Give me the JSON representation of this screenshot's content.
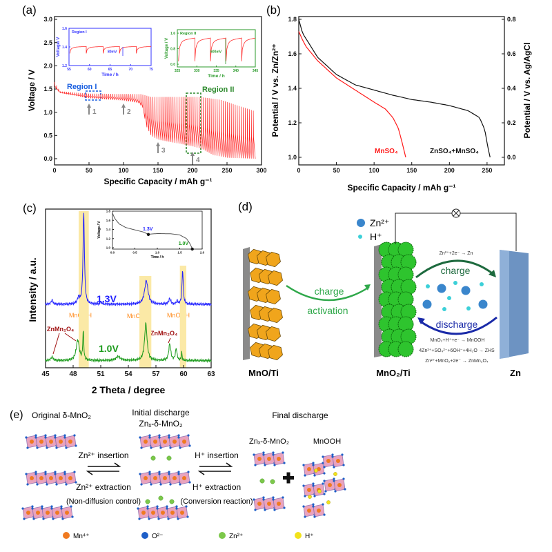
{
  "panel_labels": {
    "a": "(a)",
    "b": "(b)",
    "c": "(c)",
    "d": "(d)",
    "e": "(e)"
  },
  "chart_data": [
    {
      "id": "a",
      "type": "line",
      "xlabel": "Specific Capacity / mAh g⁻¹",
      "ylabel": "Voltage / V",
      "xlim": [
        0,
        300
      ],
      "ylim": [
        0,
        3.0
      ],
      "xticks": [
        0,
        50,
        100,
        150,
        200,
        250,
        300
      ],
      "yticks": [
        "0.0",
        "0.5",
        "1.0",
        "1.5",
        "2.0",
        "2.5",
        "3.0"
      ],
      "color": "#ff2020",
      "pulse_count": 100,
      "discharge_end": [
        [
          0,
          1.65
        ],
        [
          3,
          1.5
        ],
        [
          8,
          1.42
        ],
        [
          50,
          1.31
        ],
        [
          100,
          1.26
        ],
        [
          122,
          1.2
        ],
        [
          128,
          1.1
        ],
        [
          133,
          0.7
        ],
        [
          140,
          0.5
        ],
        [
          150,
          0.41
        ],
        [
          200,
          0.27
        ],
        [
          215,
          0.2
        ],
        [
          230,
          0.08
        ],
        [
          250,
          0.02
        ],
        [
          291,
          0.0
        ]
      ],
      "rest_end": [
        [
          0,
          1.65
        ],
        [
          8,
          1.45
        ],
        [
          50,
          1.4
        ],
        [
          125,
          1.39
        ],
        [
          140,
          1.33
        ],
        [
          210,
          1.33
        ],
        [
          240,
          1.27
        ],
        [
          291,
          1.02
        ]
      ],
      "annotations": {
        "region1": "Region I",
        "region2": "Region II",
        "arrows": [
          {
            "x": 50,
            "label": "1"
          },
          {
            "x": 100,
            "label": "2"
          },
          {
            "x": 150,
            "label": "3"
          },
          {
            "x": 200,
            "label": "4"
          }
        ],
        "region1_color": "#1a5fe0",
        "region2_color": "#2d8a2d"
      },
      "insets": [
        {
          "title": "Region I",
          "xlabel": "Time / h",
          "ylabel": "Voltage/ V",
          "xlim": [
            55,
            75
          ],
          "ylim": [
            1.2,
            1.6
          ],
          "xticks": [
            55,
            60,
            65,
            70,
            75
          ],
          "yticks": [
            "1.2",
            "1.4",
            "1.6"
          ],
          "dips": [
            55.2,
            59.2,
            63.3,
            67.3,
            71.4
          ],
          "low": 1.33,
          "high": 1.405,
          "annotation": "80mV",
          "color": "#3030ff"
        },
        {
          "title": "Region II",
          "xlabel": "Time / h",
          "ylabel": "Voltage / V",
          "xlim": [
            325,
            345
          ],
          "ylim": [
            0.0,
            1.6
          ],
          "xticks": [
            325,
            330,
            335,
            340,
            345
          ],
          "yticks": [
            "0.0",
            "0.8",
            "1.6"
          ],
          "dips": [
            325.3,
            329.5,
            333.5,
            337.5,
            341.5
          ],
          "low": 0.15,
          "high": 1.35,
          "annotation": "600mV",
          "color": "#2a9a2a"
        }
      ]
    },
    {
      "id": "b",
      "type": "line",
      "xlabel": "Specific Capacity / mAh g⁻¹",
      "ylabel": "Potential  / V vs. Zn/Zn²⁺",
      "ylabel_right": "Potential  / V vs. Ag/AgCl",
      "xlim": [
        0,
        273
      ],
      "ylim": [
        1.0,
        1.8
      ],
      "ylim_right": [
        0.0,
        0.8
      ],
      "xticks": [
        0,
        50,
        100,
        150,
        200,
        250
      ],
      "yticks": [
        "1.0",
        "1.2",
        "1.4",
        "1.6",
        "1.8"
      ],
      "yticks_right": [
        "0.0",
        "0.2",
        "0.4",
        "0.6",
        "0.8"
      ],
      "series": [
        {
          "name": "MnSO₄",
          "color": "#ff1a1a",
          "points": [
            [
              0,
              1.73
            ],
            [
              5,
              1.68
            ],
            [
              10,
              1.64
            ],
            [
              25,
              1.56
            ],
            [
              50,
              1.46
            ],
            [
              75,
              1.39
            ],
            [
              100,
              1.32
            ],
            [
              115,
              1.28
            ],
            [
              125,
              1.23
            ],
            [
              132,
              1.17
            ],
            [
              137,
              1.09
            ],
            [
              142,
              1.0
            ]
          ]
        },
        {
          "name": "ZnSO₄+MnSO₄",
          "color": "#111111",
          "points": [
            [
              0,
              1.8
            ],
            [
              5,
              1.72
            ],
            [
              25,
              1.58
            ],
            [
              50,
              1.48
            ],
            [
              75,
              1.42
            ],
            [
              100,
              1.39
            ],
            [
              125,
              1.36
            ],
            [
              150,
              1.335
            ],
            [
              175,
              1.32
            ],
            [
              200,
              1.3
            ],
            [
              225,
              1.27
            ],
            [
              240,
              1.23
            ],
            [
              247,
              1.16
            ],
            [
              251,
              1.06
            ],
            [
              254,
              1.0
            ]
          ]
        }
      ]
    },
    {
      "id": "c",
      "type": "line",
      "xlabel": "2 Theta / degree",
      "ylabel": "Intensity / a.u.",
      "xlim": [
        45,
        63
      ],
      "xticks": [
        45,
        48,
        51,
        54,
        57,
        60,
        63
      ],
      "highlight_bands": [
        [
          48.6,
          49.7
        ],
        [
          55.2,
          56.5
        ],
        [
          59.6,
          60.3
        ]
      ],
      "band_color": "#fbe9a6",
      "series": [
        {
          "name": "1.3V",
          "color": "#2020ff",
          "baseline": 4.0,
          "peaks": [
            [
              45.7,
              0.25,
              0.12
            ],
            [
              48.6,
              0.4,
              0.15
            ],
            [
              49.15,
              5.8,
              0.09
            ],
            [
              51.0,
              0.15,
              0.1
            ],
            [
              55.95,
              1.5,
              0.22
            ],
            [
              58.5,
              0.35,
              0.12
            ],
            [
              59.3,
              0.2,
              0.08
            ],
            [
              59.9,
              2.2,
              0.08
            ]
          ]
        },
        {
          "name": "1.0V",
          "color": "#1a9a1a",
          "baseline": 0.45,
          "peaks": [
            [
              45.7,
              0.22,
              0.15
            ],
            [
              48.5,
              1.3,
              0.2
            ],
            [
              49.1,
              1.85,
              0.06
            ],
            [
              52.9,
              0.25,
              0.3
            ],
            [
              55.9,
              2.35,
              0.16
            ],
            [
              58.5,
              1.05,
              0.13
            ],
            [
              59.2,
              0.75,
              0.1
            ],
            [
              59.8,
              0.5,
              0.05
            ]
          ]
        }
      ],
      "peak_labels": {
        "mnooh": "MnOOH",
        "znmn2o4": "ZnMn₂O₄",
        "mnooh_color": "#ff8a1a",
        "znmn2o4_color": "#a01010"
      },
      "inset": {
        "xlabel": "Time / h",
        "ylabel": "Voltage  / V",
        "xlim": [
          0,
          2.0
        ],
        "ylim": [
          1.0,
          1.8
        ],
        "xticks": [
          "0.0",
          "0.5",
          "1.0",
          "1.5",
          "2.0"
        ],
        "yticks": [
          "1.0",
          "1.2",
          "1.4",
          "1.6",
          "1.8"
        ],
        "points": [
          [
            0,
            1.76
          ],
          [
            0.05,
            1.64
          ],
          [
            0.15,
            1.52
          ],
          [
            0.3,
            1.44
          ],
          [
            0.5,
            1.39
          ],
          [
            0.7,
            1.34
          ],
          [
            0.8,
            1.29
          ],
          [
            0.85,
            1.3
          ],
          [
            1.0,
            1.31
          ],
          [
            1.3,
            1.305
          ],
          [
            1.5,
            1.28
          ],
          [
            1.65,
            1.2
          ],
          [
            1.72,
            1.1
          ],
          [
            1.76,
            1.02
          ],
          [
            1.78,
            0.97
          ]
        ],
        "markers": [
          {
            "x": 0.8,
            "y": 1.29,
            "label": "1.3V",
            "color": "#2020ff"
          },
          {
            "x": 1.78,
            "y": 0.97,
            "label": "1.0V",
            "color": "#1a9a1a"
          }
        ]
      }
    }
  ],
  "panel_d": {
    "electrode1": "MnO/Ti",
    "electrode2": "MnO₂/Ti",
    "electrode3": "Zn",
    "activation_line1": "charge",
    "activation_line2": "activation",
    "legend_zn": "Zn²⁺",
    "legend_h": "H⁺",
    "charge": "charge",
    "discharge": "discharge",
    "reaction_charge": "Zn²⁺+2e⁻ → Zn",
    "reactions_discharge": [
      "MnO₂+H⁺+e⁻ → MnOOH",
      "4Zn²⁺+SO₄²⁻+6OH⁻+4H₂O → ZHS",
      "Zn²⁺+MnO₂+2e⁻ → ZnMn₂O₄"
    ]
  },
  "panel_e": {
    "original": "Original δ-MnO₂",
    "initial_line1": "Initial discharge",
    "initial_line2": "Znₓ-δ-MnO₂",
    "final": "Final discharge",
    "final_left": "Znₓ-δ-MnO₂",
    "final_right": "MnOOH",
    "step1_forward": "Zn²⁺ insertion",
    "step1_back": "Zn²⁺ extraction",
    "step1_note": "(Non-diffusion control)",
    "step2_forward": "H⁺ insertion",
    "step2_back": "H⁺ extraction",
    "step2_note": "(Conversion reaction)",
    "legend": [
      {
        "label": "Mn⁴⁺",
        "color": "#f07a20"
      },
      {
        "label": "O²⁻",
        "color": "#1e5fc8"
      },
      {
        "label": "Zn²⁺",
        "color": "#7cc84a"
      },
      {
        "label": "H⁺",
        "color": "#f2e21a"
      }
    ]
  }
}
